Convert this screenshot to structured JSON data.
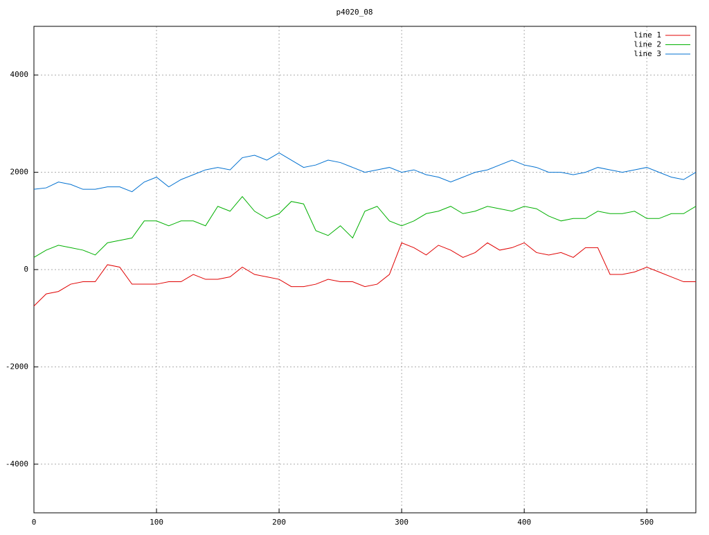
{
  "chart_data": {
    "type": "line",
    "title": "p4020_08",
    "x": [
      0,
      10,
      20,
      30,
      40,
      50,
      60,
      70,
      80,
      90,
      100,
      110,
      120,
      130,
      140,
      150,
      160,
      170,
      180,
      190,
      200,
      210,
      220,
      230,
      240,
      250,
      260,
      270,
      280,
      290,
      300,
      310,
      320,
      330,
      340,
      350,
      360,
      370,
      380,
      390,
      400,
      410,
      420,
      430,
      440,
      450,
      460,
      470,
      480,
      490,
      500,
      510,
      520,
      530,
      540
    ],
    "series": [
      {
        "name": "line 1",
        "color": "#e00000",
        "values": [
          -750,
          -500,
          -450,
          -300,
          -250,
          -250,
          100,
          50,
          -300,
          -300,
          -300,
          -250,
          -250,
          -100,
          -200,
          -200,
          -150,
          50,
          -100,
          -150,
          -200,
          -350,
          -350,
          -300,
          -200,
          -250,
          -250,
          -350,
          -300,
          -100,
          550,
          450,
          300,
          500,
          400,
          250,
          350,
          550,
          400,
          450,
          550,
          350,
          300,
          350,
          250,
          450,
          450,
          -100,
          -100,
          -50,
          50,
          -50,
          -150,
          -250,
          -250
        ]
      },
      {
        "name": "line 2",
        "color": "#00b000",
        "values": [
          250,
          400,
          500,
          450,
          400,
          300,
          550,
          600,
          650,
          1000,
          1000,
          900,
          1000,
          1000,
          900,
          1300,
          1200,
          1500,
          1200,
          1050,
          1150,
          1400,
          1350,
          800,
          700,
          900,
          650,
          1200,
          1300,
          1000,
          900,
          1000,
          1150,
          1200,
          1300,
          1150,
          1200,
          1300,
          1250,
          1200,
          1300,
          1250,
          1100,
          1000,
          1050,
          1050,
          1200,
          1150,
          1150,
          1200,
          1050,
          1050,
          1150,
          1150,
          1300
        ]
      },
      {
        "name": "line 3",
        "color": "#0070d0",
        "values": [
          1650,
          1680,
          1800,
          1750,
          1650,
          1650,
          1700,
          1700,
          1600,
          1800,
          1900,
          1700,
          1850,
          1950,
          2050,
          2100,
          2050,
          2300,
          2350,
          2250,
          2400,
          2250,
          2100,
          2150,
          2250,
          2200,
          2100,
          2000,
          2050,
          2100,
          2000,
          2050,
          1950,
          1900,
          1800,
          1900,
          2000,
          2050,
          2150,
          2250,
          2150,
          2100,
          2000,
          2000,
          1950,
          2000,
          2100,
          2050,
          2000,
          2050,
          2100,
          2000,
          1900,
          1850,
          2000
        ]
      }
    ],
    "xlim": [
      0,
      540
    ],
    "xticks": [
      0,
      100,
      200,
      300,
      400,
      500
    ],
    "ylim": [
      -5000,
      5000
    ],
    "yticks": [
      -4000,
      -2000,
      0,
      2000,
      4000
    ],
    "grid": true,
    "legend": "top-right"
  }
}
